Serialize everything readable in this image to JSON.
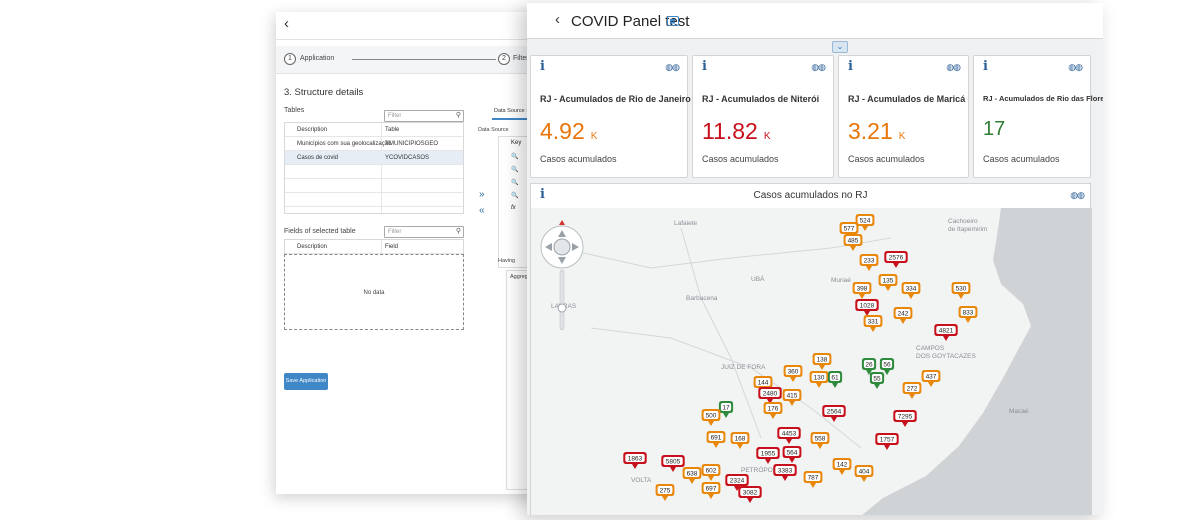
{
  "back": {
    "steps": [
      {
        "num": "1",
        "label": "Application"
      },
      {
        "num": "2",
        "label": "Filters a"
      }
    ],
    "section_title": "3. Structure details",
    "tables_label": "Tables",
    "filter_placeholder": "Filter",
    "tables_headers": [
      "Description",
      "Table"
    ],
    "tables_rows": [
      {
        "description": "Municípios com sua geolocalização",
        "table": "YMUNICIPIOSGEO"
      },
      {
        "description": "Casos de covid",
        "table": "YCOVIDCASOS"
      }
    ],
    "fields_label": "Fields of selected table",
    "fields_headers": [
      "Description",
      "Field"
    ],
    "no_data": "No data",
    "save_label": "Save Application",
    "ds_tab": "Data Source ×",
    "ds_sub": "Data Source",
    "key_header": "Key",
    "key_fx": "fx",
    "having": "Having",
    "aggregate": "Aggrega"
  },
  "panel": {
    "title": "COVID Panel test",
    "kpis": [
      {
        "title": "RJ - Acumulados de Rio de Janeiro",
        "value": "4.92",
        "unit": "K",
        "sub": "Casos acumulados",
        "color": "#e8760a"
      },
      {
        "title": "RJ - Acumulados de Niterói",
        "value": "11.82",
        "unit": "K",
        "sub": "Casos acumulados",
        "color": "#c7101b"
      },
      {
        "title": "RJ - Acumulados de Maricá",
        "value": "3.21",
        "unit": "K",
        "sub": "Casos acumulados",
        "color": "#e8760a"
      },
      {
        "title": "RJ - Acumulados de Rio das Flores",
        "value": "17",
        "unit": "",
        "sub": "Casos acumulados",
        "color": "#2e7d32"
      }
    ],
    "map_title": "Casos acumulados no RJ",
    "map_places": [
      {
        "name": "Lafaiete",
        "lx": 143,
        "ly": 9
      },
      {
        "name": "Cachoeiro\nde Itapemirim",
        "lx": 417,
        "ly": 7
      },
      {
        "name": "UBÁ",
        "lx": 220,
        "ly": 65
      },
      {
        "name": "Muriaé",
        "lx": 300,
        "ly": 66
      },
      {
        "name": "Barbacena",
        "lx": 155,
        "ly": 84
      },
      {
        "name": "LAVRAS",
        "lx": 20,
        "ly": 92
      },
      {
        "name": "CAMPOS\nDOS GOYTACAZES",
        "lx": 385,
        "ly": 134
      },
      {
        "name": "JUIZ DE FORA",
        "lx": 190,
        "ly": 153
      },
      {
        "name": "Macaé",
        "lx": 478,
        "ly": 197
      },
      {
        "name": "PETRÓPOLIS",
        "lx": 210,
        "ly": 256
      },
      {
        "name": "VOLTA",
        "lx": 100,
        "ly": 266
      }
    ],
    "markers": [
      {
        "label": "524",
        "level": "o"
      },
      {
        "label": "577",
        "level": "o"
      },
      {
        "label": "485",
        "level": "o"
      },
      {
        "label": "233",
        "level": "o"
      },
      {
        "label": "2576",
        "level": "r"
      },
      {
        "label": "135",
        "level": "o"
      },
      {
        "label": "398",
        "level": "o"
      },
      {
        "label": "334",
        "level": "o"
      },
      {
        "label": "1028",
        "level": "r"
      },
      {
        "label": "242",
        "level": "o"
      },
      {
        "label": "331",
        "level": "o"
      },
      {
        "label": "530",
        "level": "o"
      },
      {
        "label": "833",
        "level": "o"
      },
      {
        "label": "4821",
        "level": "r"
      },
      {
        "label": "138",
        "level": "o"
      },
      {
        "label": "26",
        "level": "g"
      },
      {
        "label": "56",
        "level": "g"
      },
      {
        "label": "360",
        "level": "o"
      },
      {
        "label": "130",
        "level": "o"
      },
      {
        "label": "61",
        "level": "g"
      },
      {
        "label": "55",
        "level": "g"
      },
      {
        "label": "437",
        "level": "o"
      },
      {
        "label": "272",
        "level": "o"
      },
      {
        "label": "144",
        "level": "o"
      },
      {
        "label": "2480",
        "level": "r"
      },
      {
        "label": "415",
        "level": "o"
      },
      {
        "label": "176",
        "level": "o"
      },
      {
        "label": "17",
        "level": "g"
      },
      {
        "label": "2564",
        "level": "r"
      },
      {
        "label": "7295",
        "level": "r"
      },
      {
        "label": "500",
        "level": "o"
      },
      {
        "label": "691",
        "level": "o"
      },
      {
        "label": "168",
        "level": "o"
      },
      {
        "label": "4453",
        "level": "r"
      },
      {
        "label": "558",
        "level": "o"
      },
      {
        "label": "1757",
        "level": "r"
      },
      {
        "label": "1955",
        "level": "r"
      },
      {
        "label": "564",
        "level": "r"
      },
      {
        "label": "1863",
        "level": "r"
      },
      {
        "label": "5805",
        "level": "r"
      },
      {
        "label": "3383",
        "level": "r"
      },
      {
        "label": "142",
        "level": "o"
      },
      {
        "label": "638",
        "level": "o"
      },
      {
        "label": "602",
        "level": "o"
      },
      {
        "label": "404",
        "level": "o"
      },
      {
        "label": "275",
        "level": "o"
      },
      {
        "label": "697",
        "level": "o"
      },
      {
        "label": "2324",
        "level": "r"
      },
      {
        "label": "787",
        "level": "o"
      },
      {
        "label": "3082",
        "level": "r"
      }
    ],
    "colors": {
      "o": "#e8870a",
      "r": "#c7101b",
      "g": "#2e8b3e",
      "land": "#f2f3f3",
      "sea": "#cfd3d6"
    }
  }
}
